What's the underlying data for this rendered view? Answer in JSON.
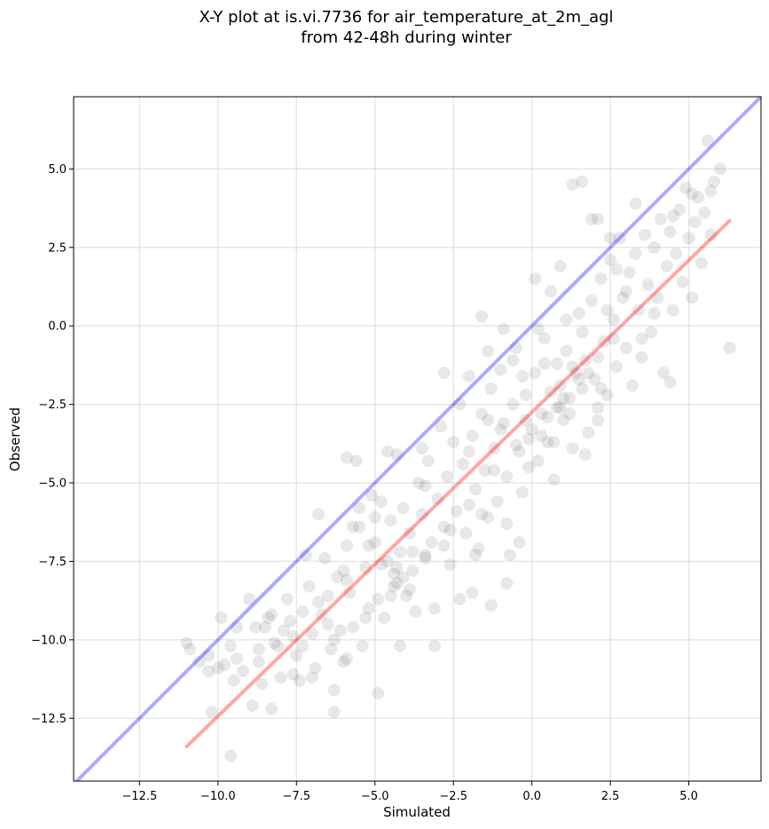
{
  "chart_data": {
    "type": "scatter",
    "title_line1": "X-Y plot at is.vi.7736 for air_temperature_at_2m_agl",
    "title_line2": "from 42-48h during winter",
    "xlabel": "Simulated",
    "ylabel": "Observed",
    "xlim": [
      -14.6,
      7.3
    ],
    "ylim": [
      -14.5,
      7.3
    ],
    "xticks": [
      -12.5,
      -10.0,
      -7.5,
      -5.0,
      -2.5,
      0.0,
      2.5,
      5.0
    ],
    "yticks": [
      -12.5,
      -10.0,
      -7.5,
      -5.0,
      -2.5,
      0.0,
      2.5,
      5.0
    ],
    "xtick_labels": [
      "−12.5",
      "−10.0",
      "−7.5",
      "−5.0",
      "−2.5",
      "0.0",
      "2.5",
      "5.0"
    ],
    "ytick_labels": [
      "−12.5",
      "−10.0",
      "−7.5",
      "−5.0",
      "−2.5",
      "0.0",
      "2.5",
      "5.0"
    ],
    "grid": true,
    "point_color": "#000000",
    "point_opacity": 0.09,
    "identity_line": {
      "color": "#0000ff",
      "opacity": 0.33,
      "x": [
        -14.6,
        7.3
      ],
      "y": [
        -14.6,
        7.3
      ]
    },
    "fit_line": {
      "color": "#ff0000",
      "opacity": 0.35,
      "x": [
        -11.0,
        6.3
      ],
      "y": [
        -13.4,
        3.35
      ]
    },
    "points": [
      [
        -10.9,
        -10.3
      ],
      [
        -10.6,
        -10.7
      ],
      [
        -10.3,
        -10.5
      ],
      [
        -10.0,
        -10.9
      ],
      [
        -9.9,
        -9.3
      ],
      [
        -9.6,
        -10.2
      ],
      [
        -9.4,
        -10.6
      ],
      [
        -9.2,
        -11.0
      ],
      [
        -9.0,
        -8.7
      ],
      [
        -8.8,
        -9.6
      ],
      [
        -8.7,
        -10.7
      ],
      [
        -8.9,
        -12.1
      ],
      [
        -8.6,
        -11.4
      ],
      [
        -8.4,
        -9.3
      ],
      [
        -8.2,
        -10.1
      ],
      [
        -8.0,
        -11.2
      ],
      [
        -7.9,
        -9.7
      ],
      [
        -7.7,
        -9.4
      ],
      [
        -7.5,
        -10.5
      ],
      [
        -7.4,
        -11.3
      ],
      [
        -7.3,
        -9.1
      ],
      [
        -7.1,
        -8.3
      ],
      [
        -7.0,
        -9.8
      ],
      [
        -6.9,
        -10.9
      ],
      [
        -6.8,
        -8.8
      ],
      [
        -6.6,
        -7.4
      ],
      [
        -6.5,
        -9.5
      ],
      [
        -6.4,
        -10.3
      ],
      [
        -6.3,
        -11.6
      ],
      [
        -6.2,
        -8.0
      ],
      [
        -6.1,
        -9.7
      ],
      [
        -6.0,
        -10.7
      ],
      [
        -5.9,
        -7.0
      ],
      [
        -5.8,
        -8.5
      ],
      [
        -5.7,
        -9.6
      ],
      [
        -5.6,
        -4.3
      ],
      [
        -5.5,
        -6.4
      ],
      [
        -5.4,
        -10.2
      ],
      [
        -5.3,
        -7.7
      ],
      [
        -5.2,
        -9.0
      ],
      [
        -5.1,
        -5.4
      ],
      [
        -5.0,
        -6.9
      ],
      [
        -4.9,
        -8.7
      ],
      [
        -4.8,
        -7.6
      ],
      [
        -4.7,
        -9.3
      ],
      [
        -4.6,
        -4.0
      ],
      [
        -4.5,
        -6.2
      ],
      [
        -4.4,
        -7.9
      ],
      [
        -4.3,
        -8.2
      ],
      [
        -4.2,
        -7.2
      ],
      [
        -4.1,
        -5.8
      ],
      [
        -4.0,
        -8.6
      ],
      [
        -3.9,
        -6.6
      ],
      [
        -3.8,
        -7.8
      ],
      [
        -3.7,
        -9.1
      ],
      [
        -3.6,
        -5.0
      ],
      [
        -3.5,
        -6.0
      ],
      [
        -3.4,
        -7.4
      ],
      [
        -3.3,
        -4.3
      ],
      [
        -3.2,
        -6.9
      ],
      [
        -3.1,
        -10.2
      ],
      [
        -3.0,
        -5.5
      ],
      [
        -2.9,
        -3.2
      ],
      [
        -2.8,
        -6.4
      ],
      [
        -2.7,
        -4.8
      ],
      [
        -2.6,
        -7.6
      ],
      [
        -2.5,
        -3.7
      ],
      [
        -2.4,
        -5.9
      ],
      [
        -2.3,
        -2.5
      ],
      [
        -2.2,
        -4.4
      ],
      [
        -2.1,
        -6.6
      ],
      [
        -2.0,
        -1.6
      ],
      [
        -1.9,
        -3.5
      ],
      [
        -1.8,
        -5.2
      ],
      [
        -1.7,
        -7.1
      ],
      [
        -1.6,
        -2.8
      ],
      [
        -1.5,
        -4.6
      ],
      [
        -1.4,
        -6.1
      ],
      [
        -1.3,
        -2.0
      ],
      [
        -1.2,
        -3.9
      ],
      [
        -1.1,
        -5.6
      ],
      [
        -1.0,
        -1.4
      ],
      [
        -0.9,
        -3.1
      ],
      [
        -0.8,
        -4.8
      ],
      [
        -0.7,
        -7.3
      ],
      [
        -0.6,
        -2.5
      ],
      [
        -0.5,
        -0.7
      ],
      [
        -0.4,
        -4.0
      ],
      [
        -0.3,
        -5.3
      ],
      [
        -0.2,
        -2.2
      ],
      [
        -0.1,
        -3.6
      ],
      [
        0.0,
        -3.3
      ],
      [
        0.1,
        -1.5
      ],
      [
        0.2,
        -4.3
      ],
      [
        0.3,
        -2.8
      ],
      [
        0.4,
        -0.4
      ],
      [
        0.5,
        -3.7
      ],
      [
        0.6,
        -2.1
      ],
      [
        0.7,
        -4.9
      ],
      [
        0.8,
        -1.2
      ],
      [
        0.9,
        -2.6
      ],
      [
        1.0,
        -3.0
      ],
      [
        1.1,
        -0.8
      ],
      [
        1.2,
        -2.3
      ],
      [
        1.3,
        -3.9
      ],
      [
        1.4,
        -1.5
      ],
      [
        1.5,
        0.4
      ],
      [
        1.6,
        -2.0
      ],
      [
        1.7,
        -1.1
      ],
      [
        1.8,
        -3.4
      ],
      [
        1.9,
        0.8
      ],
      [
        2.0,
        -1.7
      ],
      [
        2.1,
        -2.6
      ],
      [
        2.2,
        1.5
      ],
      [
        2.3,
        -0.5
      ],
      [
        2.4,
        -2.2
      ],
      [
        2.5,
        2.1
      ],
      [
        2.6,
        0.2
      ],
      [
        2.7,
        -1.3
      ],
      [
        2.8,
        2.8
      ],
      [
        2.9,
        0.9
      ],
      [
        3.0,
        -0.7
      ],
      [
        3.1,
        1.7
      ],
      [
        3.2,
        -1.9
      ],
      [
        3.3,
        2.3
      ],
      [
        3.4,
        0.5
      ],
      [
        3.5,
        -1.0
      ],
      [
        3.6,
        2.9
      ],
      [
        3.7,
        1.3
      ],
      [
        3.8,
        -0.2
      ],
      [
        3.9,
        2.5
      ],
      [
        4.0,
        0.9
      ],
      [
        4.1,
        3.4
      ],
      [
        4.2,
        -1.5
      ],
      [
        4.3,
        1.9
      ],
      [
        4.4,
        3.0
      ],
      [
        4.5,
        0.5
      ],
      [
        4.6,
        2.3
      ],
      [
        4.7,
        3.7
      ],
      [
        4.8,
        1.4
      ],
      [
        4.9,
        4.4
      ],
      [
        5.0,
        2.8
      ],
      [
        5.1,
        0.9
      ],
      [
        5.2,
        3.3
      ],
      [
        5.3,
        4.1
      ],
      [
        5.4,
        2.0
      ],
      [
        5.5,
        3.6
      ],
      [
        5.6,
        5.9
      ],
      [
        5.7,
        2.9
      ],
      [
        5.8,
        4.6
      ],
      [
        6.0,
        5.0
      ],
      [
        6.3,
        -0.7
      ],
      [
        -8.5,
        -9.6
      ],
      [
        -7.6,
        -9.9
      ],
      [
        -6.7,
        -9.2
      ],
      [
        -5.9,
        -8.1
      ],
      [
        -4.4,
        -8.3
      ],
      [
        -4.3,
        -7.7
      ],
      [
        -4.6,
        -7.5
      ],
      [
        -4.1,
        -8.0
      ],
      [
        -3.9,
        -8.4
      ],
      [
        -4.5,
        -8.6
      ],
      [
        -3.8,
        -7.2
      ],
      [
        -5.2,
        -7.0
      ],
      [
        -6.0,
        -7.8
      ],
      [
        1.0,
        -2.3
      ],
      [
        0.8,
        -2.6
      ],
      [
        1.2,
        -2.8
      ],
      [
        0.9,
        -1.9
      ],
      [
        1.5,
        -1.7
      ],
      [
        1.3,
        -1.3
      ],
      [
        1.8,
        -1.5
      ],
      [
        2.2,
        -2.0
      ],
      [
        0.5,
        -2.9
      ],
      [
        0.3,
        -3.5
      ],
      [
        -0.2,
        -3.0
      ],
      [
        -1.0,
        -3.3
      ],
      [
        -0.5,
        -3.8
      ],
      [
        1.6,
        -0.2
      ],
      [
        2.4,
        0.5
      ],
      [
        3.0,
        1.1
      ],
      [
        2.7,
        1.8
      ],
      [
        -9.6,
        -13.7
      ],
      [
        -10.2,
        -12.3
      ],
      [
        -8.3,
        -12.2
      ],
      [
        -6.3,
        -12.3
      ],
      [
        -4.9,
        -11.7
      ],
      [
        -7.2,
        -7.3
      ],
      [
        -6.8,
        -6.0
      ],
      [
        -5.5,
        -5.8
      ],
      [
        -3.4,
        -5.1
      ],
      [
        -2.0,
        -4.0
      ],
      [
        -1.4,
        -3.0
      ],
      [
        -0.6,
        -1.1
      ],
      [
        -1.6,
        0.3
      ],
      [
        -0.9,
        -0.1
      ],
      [
        0.6,
        1.1
      ],
      [
        0.1,
        1.5
      ],
      [
        0.9,
        1.9
      ],
      [
        1.3,
        4.5
      ],
      [
        1.6,
        4.6
      ],
      [
        1.9,
        3.4
      ],
      [
        2.1,
        3.4
      ],
      [
        2.5,
        2.8
      ],
      [
        3.3,
        3.9
      ],
      [
        4.5,
        3.5
      ],
      [
        5.1,
        4.2
      ],
      [
        5.7,
        4.3
      ],
      [
        -11.0,
        -10.1
      ],
      [
        -9.5,
        -11.3
      ],
      [
        -8.1,
        -10.2
      ],
      [
        -7.0,
        -11.2
      ],
      [
        -6.5,
        -8.6
      ],
      [
        -5.3,
        -9.3
      ],
      [
        -4.2,
        -10.2
      ],
      [
        -3.1,
        -9.0
      ],
      [
        -2.3,
        -8.7
      ],
      [
        -1.3,
        -8.9
      ],
      [
        -2.8,
        -7.0
      ],
      [
        -1.6,
        -6.0
      ],
      [
        -0.8,
        -6.3
      ],
      [
        -3.5,
        -3.9
      ],
      [
        -4.3,
        -4.1
      ],
      [
        -5.9,
        -4.2
      ],
      [
        -2.8,
        -1.5
      ],
      [
        -1.4,
        -0.8
      ],
      [
        0.2,
        -0.1
      ],
      [
        1.1,
        0.2
      ],
      [
        -0.3,
        -1.6
      ],
      [
        0.4,
        -1.2
      ],
      [
        2.1,
        -1.0
      ],
      [
        2.6,
        -0.4
      ],
      [
        3.5,
        -0.4
      ],
      [
        3.9,
        0.4
      ],
      [
        4.4,
        -1.8
      ],
      [
        2.1,
        -3.0
      ],
      [
        1.7,
        -4.1
      ],
      [
        0.7,
        -3.7
      ],
      [
        -0.1,
        -4.5
      ],
      [
        -1.2,
        -4.6
      ],
      [
        -2.0,
        -5.7
      ],
      [
        -2.6,
        -6.5
      ],
      [
        -3.4,
        -7.3
      ],
      [
        -1.8,
        -7.3
      ],
      [
        -0.4,
        -6.9
      ],
      [
        -0.8,
        -8.2
      ],
      [
        -1.9,
        -8.5
      ],
      [
        -5.0,
        -6.1
      ],
      [
        -4.8,
        -5.6
      ],
      [
        -5.7,
        -6.4
      ],
      [
        -7.8,
        -8.7
      ],
      [
        -8.3,
        -9.2
      ],
      [
        -7.3,
        -10.2
      ],
      [
        -6.3,
        -10.0
      ],
      [
        -5.9,
        -10.6
      ],
      [
        -7.6,
        -11.1
      ],
      [
        -8.7,
        -10.3
      ],
      [
        -9.4,
        -9.6
      ],
      [
        -10.3,
        -11.0
      ],
      [
        -9.8,
        -10.8
      ]
    ]
  }
}
